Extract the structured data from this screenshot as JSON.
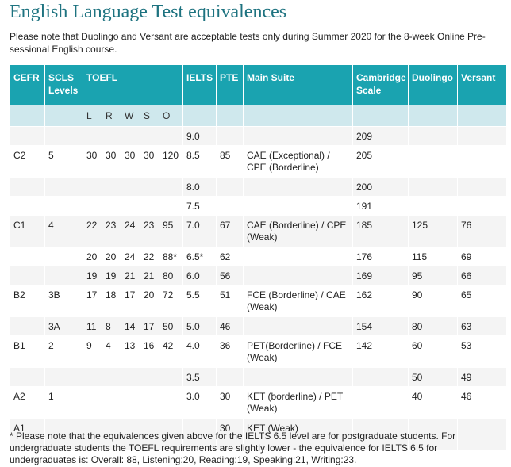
{
  "title": "English Language Test equivalences",
  "intro": "Please note that Duolingo and Versant are acceptable tests only during Summer 2020 for the 8-week Online Pre-sessional English course.",
  "headers": {
    "cefr": "CEFR",
    "scls": "SCLS Levels",
    "toefl": "TOEFL",
    "ielts": "IELTS",
    "pte": "PTE",
    "main_suite": "Main Suite",
    "cambridge": "Cambridge Scale",
    "duolingo": "Duolingo",
    "versant": "Versant"
  },
  "toefl_sub": [
    "L",
    "R",
    "W",
    "S",
    "O"
  ],
  "rows": [
    [
      "",
      "",
      "",
      "",
      "",
      "",
      "",
      "9.0",
      "",
      "",
      "209",
      "",
      ""
    ],
    [
      "C2",
      "5",
      "30",
      "30",
      "30",
      "30",
      "120",
      "8.5",
      "85",
      "CAE (Exceptional) / CPE (Borderline)",
      "205",
      "",
      ""
    ],
    [
      "",
      "",
      "",
      "",
      "",
      "",
      "",
      "8.0",
      "",
      "",
      "200",
      "",
      ""
    ],
    [
      "",
      "",
      "",
      "",
      "",
      "",
      "",
      "7.5",
      "",
      "",
      "191",
      "",
      ""
    ],
    [
      "C1",
      "4",
      "22",
      "23",
      "24",
      "23",
      "95",
      "7.0",
      "67",
      "CAE (Borderline) / CPE (Weak)",
      "185",
      "125",
      "76"
    ],
    [
      "",
      "",
      "20",
      "20",
      "24",
      "22",
      "88*",
      "6.5*",
      "62",
      "",
      "176",
      "115",
      "69"
    ],
    [
      "",
      "",
      "19",
      "19",
      "21",
      "21",
      "80",
      "6.0",
      "56",
      "",
      "169",
      "95",
      "66"
    ],
    [
      "B2",
      "3B",
      "17",
      "18",
      "17",
      "20",
      "72",
      "5.5",
      "51",
      "FCE (Borderline) / CAE (Weak)",
      "162",
      "90",
      "65"
    ],
    [
      "",
      "3A",
      "11",
      "8",
      "14",
      "17",
      "50",
      "5.0",
      "46",
      "",
      "154",
      "80",
      "63"
    ],
    [
      "B1",
      "2",
      "9",
      "4",
      "13",
      "16",
      "42",
      "4.0",
      "36",
      "PET(Borderline) / FCE (Weak)",
      "142",
      "60",
      "53"
    ],
    [
      "",
      "",
      "",
      "",
      "",
      "",
      "",
      "3.5",
      "",
      "",
      "",
      "50",
      "49"
    ],
    [
      "A2",
      "1",
      "",
      "",
      "",
      "",
      "",
      "3.0",
      "30",
      "KET (borderline) / PET (Weak)",
      "",
      "40",
      "46"
    ],
    [
      "A1",
      "",
      "",
      "",
      "",
      "",
      "",
      "",
      "30",
      "KET (Weak)",
      "",
      "",
      ""
    ]
  ],
  "footnote": "* Please note that the equivalences given above for the IELTS 6.5 level are for postgraduate students. For undergraduate students the TOEFL requirements are slightly lower - the equivalence for IELTS 6.5 for undergraduates is: Overall: 88, Listening:20, Reading:19, Speaking:21, Writing:23.",
  "colors": {
    "title": "#1e7380",
    "header_bg": "#1aa3b0",
    "subheader_bg": "#cfe8ed",
    "row_alt_bg": "#f4f4f4"
  }
}
